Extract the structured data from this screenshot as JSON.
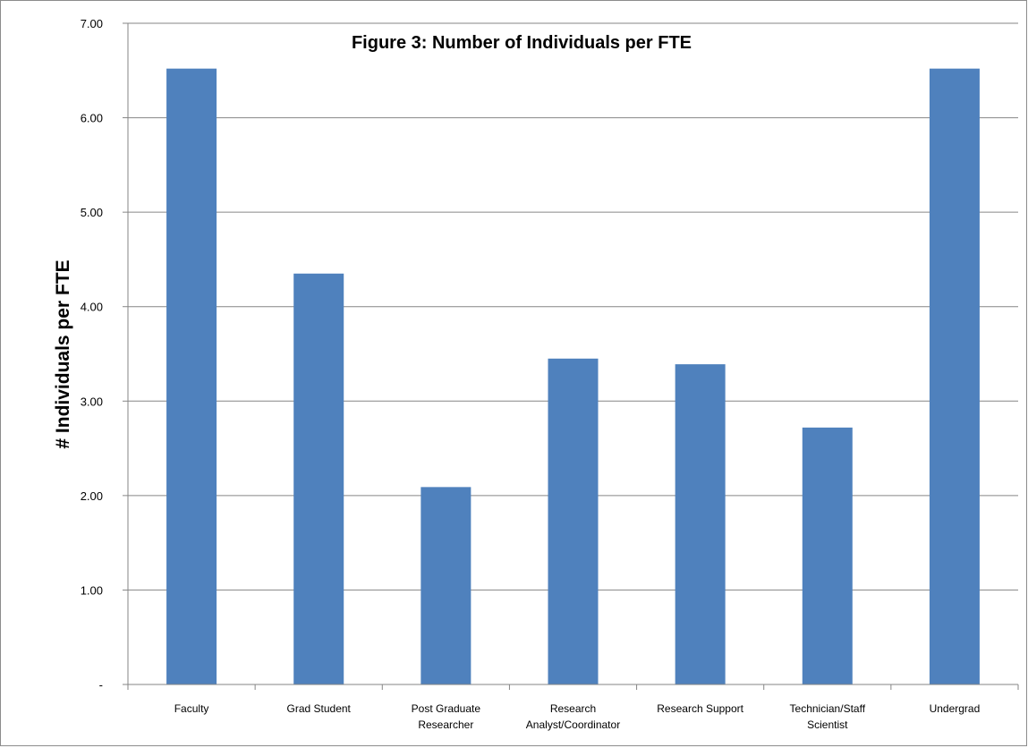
{
  "chart_data": {
    "type": "bar",
    "title": "Figure 3: Number of  Individuals per FTE",
    "xlabel": "",
    "ylabel": "# Individuals per FTE",
    "categories": [
      [
        "Faculty"
      ],
      [
        "Grad Student"
      ],
      [
        "Post Graduate",
        "Researcher"
      ],
      [
        "Research",
        "Analyst/Coordinator"
      ],
      [
        "Research Support"
      ],
      [
        "Technician/Staff",
        "Scientist"
      ],
      [
        "Undergrad"
      ]
    ],
    "values": [
      6.52,
      4.35,
      2.09,
      3.45,
      3.39,
      2.72,
      6.52
    ],
    "ylim": [
      0,
      7
    ],
    "yticks": [
      0,
      1,
      2,
      3,
      4,
      5,
      6,
      7
    ],
    "ytick_labels": [
      "-",
      "1.00",
      "2.00",
      "3.00",
      "4.00",
      "5.00",
      "6.00",
      "7.00"
    ],
    "grid": true,
    "legend": "none",
    "bar_color": "#4f81bd",
    "grid_color": "#868686"
  }
}
